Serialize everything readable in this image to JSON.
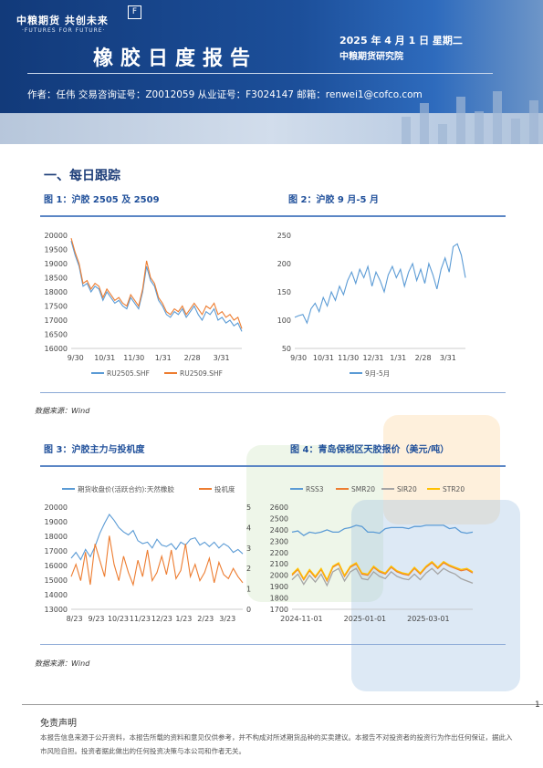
{
  "header": {
    "logo_cn": "中粮期货  共创未来",
    "logo_en": "·FUTURES FOR FUTURE·",
    "logo_mark": "F",
    "title": "橡胶日度报告",
    "date": "2025 年 4 月 1 日  星期二",
    "institute": "中粮期货研究院",
    "author_line": "作者：任伟   交易咨询证号：Z0012059   从业证号：F3024147   邮箱：renwei1@cofco.com"
  },
  "section_title": "一、每日跟踪",
  "figures": {
    "fig1": {
      "title": "图 1：沪胶 2505 及 2509"
    },
    "fig2": {
      "title": "图 2：沪胶 9 月-5 月"
    },
    "fig3": {
      "title": "图 3：沪胶主力与投机度"
    },
    "fig4": {
      "title": "图 4：青岛保税区天胶报价（美元/吨）"
    }
  },
  "source1": "数据来源：Wind",
  "source2": "数据来源：Wind",
  "disclaimer": {
    "head": "免责声明",
    "body": "本报告信息来源于公开资料，本报告所载的资料和意见仅供参考，并不构成对所述期货品种的买卖建议。本报告不对投资者的投资行为作出任何保证，据此入市风险自担。投资者据此做出的任何投资决策与本公司和作者无关。"
  },
  "page_number": "1",
  "chart_data": [
    {
      "type": "line",
      "x_ticks": [
        "9/30",
        "10/31",
        "11/30",
        "1/31",
        "2/28",
        "3/31"
      ],
      "ylim": [
        16000,
        20000
      ],
      "y_ticks": [
        16000,
        16500,
        17000,
        17500,
        18000,
        18500,
        19000,
        19500,
        20000
      ],
      "series": [
        {
          "name": "RU2505.SHF",
          "color": "#5b9bd5",
          "values": [
            19800,
            19300,
            18900,
            18200,
            18300,
            18000,
            18200,
            18100,
            17700,
            18000,
            17800,
            17600,
            17700,
            17500,
            17400,
            17800,
            17600,
            17400,
            18000,
            18900,
            18400,
            18200,
            17700,
            17500,
            17200,
            17100,
            17300,
            17200,
            17400,
            17100,
            17300,
            17500,
            17200,
            17000,
            17300,
            17200,
            17400,
            17000,
            17100,
            16900,
            17000,
            16800,
            16900,
            16600
          ]
        },
        {
          "name": "RU2509.SHF",
          "color": "#ed7d31",
          "values": [
            19900,
            19400,
            19000,
            18300,
            18400,
            18100,
            18300,
            18200,
            17800,
            18100,
            17900,
            17700,
            17800,
            17600,
            17500,
            17900,
            17700,
            17500,
            18100,
            19100,
            18500,
            18300,
            17800,
            17600,
            17300,
            17200,
            17400,
            17300,
            17500,
            17200,
            17400,
            17600,
            17400,
            17200,
            17500,
            17400,
            17600,
            17200,
            17300,
            17100,
            17200,
            17000,
            17100,
            16700
          ]
        }
      ]
    },
    {
      "type": "line",
      "x_ticks": [
        "9/30",
        "10/31",
        "11/30",
        "12/31",
        "1/31",
        "2/28",
        "3/31"
      ],
      "ylim": [
        50,
        250
      ],
      "y_ticks": [
        50,
        100,
        150,
        200,
        250
      ],
      "series": [
        {
          "name": "9月-5月",
          "color": "#5b9bd5",
          "values": [
            105,
            108,
            110,
            95,
            120,
            130,
            115,
            140,
            125,
            150,
            135,
            160,
            145,
            170,
            185,
            165,
            190,
            175,
            195,
            160,
            185,
            170,
            150,
            180,
            195,
            175,
            190,
            160,
            185,
            200,
            170,
            190,
            165,
            200,
            180,
            155,
            190,
            210,
            185,
            230,
            235,
            215,
            175
          ]
        }
      ]
    },
    {
      "type": "line",
      "x_ticks": [
        "8/23",
        "9/23",
        "10/23",
        "11/23",
        "12/23",
        "1/23",
        "2/23",
        "3/23"
      ],
      "ylim": [
        13000,
        20000
      ],
      "y_ticks": [
        13000,
        14000,
        15000,
        16000,
        17000,
        18000,
        19000,
        20000
      ],
      "y2lim": [
        0,
        5
      ],
      "y2_ticks": [
        0,
        1,
        2,
        3,
        4,
        5
      ],
      "series": [
        {
          "name": "期货收盘价(活跃合约):天然橡胶",
          "color": "#5b9bd5",
          "axis": "left",
          "values": [
            16500,
            16900,
            16400,
            17100,
            16600,
            17300,
            18200,
            18900,
            19500,
            19100,
            18600,
            18300,
            18100,
            18400,
            17700,
            17500,
            17600,
            17200,
            17800,
            17400,
            17300,
            17500,
            17100,
            17600,
            17400,
            17800,
            17900,
            17400,
            17600,
            17300,
            17600,
            17200,
            17500,
            17300,
            16900,
            17100,
            16800
          ]
        },
        {
          "name": "投机度",
          "color": "#ed7d31",
          "axis": "right",
          "values": [
            1.6,
            2.2,
            1.4,
            2.8,
            1.2,
            3.2,
            2.4,
            1.6,
            3.6,
            2.2,
            1.4,
            2.6,
            1.8,
            1.2,
            2.4,
            1.6,
            2.9,
            1.4,
            1.8,
            2.6,
            1.7,
            2.9,
            1.5,
            1.9,
            3.2,
            1.6,
            2.2,
            1.4,
            1.8,
            2.5,
            1.3,
            2.3,
            1.7,
            1.5,
            2.0,
            1.6,
            1.3
          ]
        }
      ]
    },
    {
      "type": "line",
      "x_ticks": [
        "2024-11-01",
        "2025-01-01",
        "2025-03-01"
      ],
      "ylim": [
        1700,
        2600
      ],
      "y_ticks": [
        1700,
        1800,
        1900,
        2000,
        2100,
        2200,
        2300,
        2400,
        2500,
        2600
      ],
      "series": [
        {
          "name": "RSS3",
          "color": "#5b9bd5",
          "values": [
            2380,
            2390,
            2350,
            2380,
            2370,
            2380,
            2400,
            2380,
            2380,
            2410,
            2420,
            2440,
            2430,
            2380,
            2380,
            2370,
            2410,
            2420,
            2420,
            2420,
            2410,
            2430,
            2430,
            2440,
            2440,
            2440,
            2440,
            2410,
            2420,
            2380,
            2370,
            2380
          ]
        },
        {
          "name": "SMR20",
          "color": "#ed7d31",
          "values": [
            2000,
            2050,
            1960,
            2040,
            1980,
            2050,
            1950,
            2070,
            2100,
            1990,
            2070,
            2100,
            2010,
            2000,
            2070,
            2030,
            2010,
            2070,
            2030,
            2010,
            2000,
            2060,
            2010,
            2070,
            2110,
            2060,
            2110,
            2080,
            2060,
            2040,
            2050,
            2020
          ]
        },
        {
          "name": "SIR20",
          "color": "#a5a5a5",
          "values": [
            1960,
            2010,
            1920,
            2000,
            1940,
            2010,
            1910,
            2030,
            2060,
            1950,
            2030,
            2060,
            1970,
            1960,
            2030,
            1990,
            1970,
            2030,
            1990,
            1970,
            1960,
            2010,
            1960,
            2020,
            2060,
            2010,
            2060,
            2030,
            2010,
            1970,
            1950,
            1930
          ]
        },
        {
          "name": "STR20",
          "color": "#ffc000",
          "values": [
            2010,
            2060,
            1970,
            2050,
            1990,
            2060,
            1960,
            2080,
            2110,
            2000,
            2080,
            2110,
            2020,
            2010,
            2080,
            2040,
            2020,
            2080,
            2040,
            2020,
            2010,
            2070,
            2020,
            2080,
            2120,
            2070,
            2120,
            2090,
            2070,
            2050,
            2060,
            2030
          ]
        }
      ]
    }
  ]
}
